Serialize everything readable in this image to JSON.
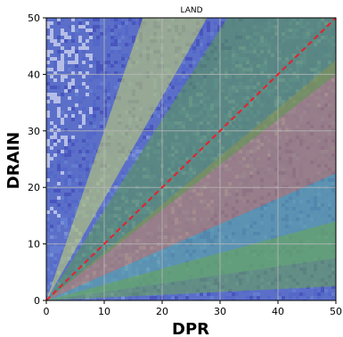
{
  "chart_data": {
    "type": "heatmap",
    "title": "LAND",
    "xlabel": "DPR",
    "ylabel": "DRAIN",
    "xlim": [
      0,
      50
    ],
    "ylim": [
      0,
      50
    ],
    "x_ticks": [
      "0",
      "10",
      "20",
      "30",
      "40",
      "50"
    ],
    "y_ticks": [
      "0",
      "10",
      "20",
      "30",
      "40",
      "50"
    ],
    "grid": true,
    "reference_line": {
      "from": [
        0,
        0
      ],
      "to": [
        50,
        50
      ],
      "style": "dashed",
      "color": "#e8202a"
    },
    "density_background": {
      "description_colors": [
        "#3a3fb0",
        "#4f63c9",
        "#6a86d6",
        "#8fa8de"
      ],
      "empty_color": "#ffffff"
    },
    "overlay_bands": [
      {
        "name": "band-tan-upper",
        "color": "#c98a55",
        "from_x": 0,
        "upper_slope": 0.85,
        "lower_slope": 0.45
      },
      {
        "name": "band-green-upper",
        "color": "#5a9a4a",
        "from_x": 0,
        "upper_slope": 1.6,
        "lower_slope": 0.8
      },
      {
        "name": "band-yellow-inner",
        "color": "#c8d86a",
        "from_x": 0,
        "upper_slope": 3.0,
        "lower_slope": 1.8
      },
      {
        "name": "band-teal-lower",
        "color": "#5db0a0",
        "from_x": 0,
        "upper_slope": 0.45,
        "lower_slope": 0.15
      },
      {
        "name": "band-green-lower",
        "color": "#6aa84f",
        "from_x": 0,
        "upper_slope": 0.28,
        "lower_slope": 0.05
      }
    ]
  }
}
